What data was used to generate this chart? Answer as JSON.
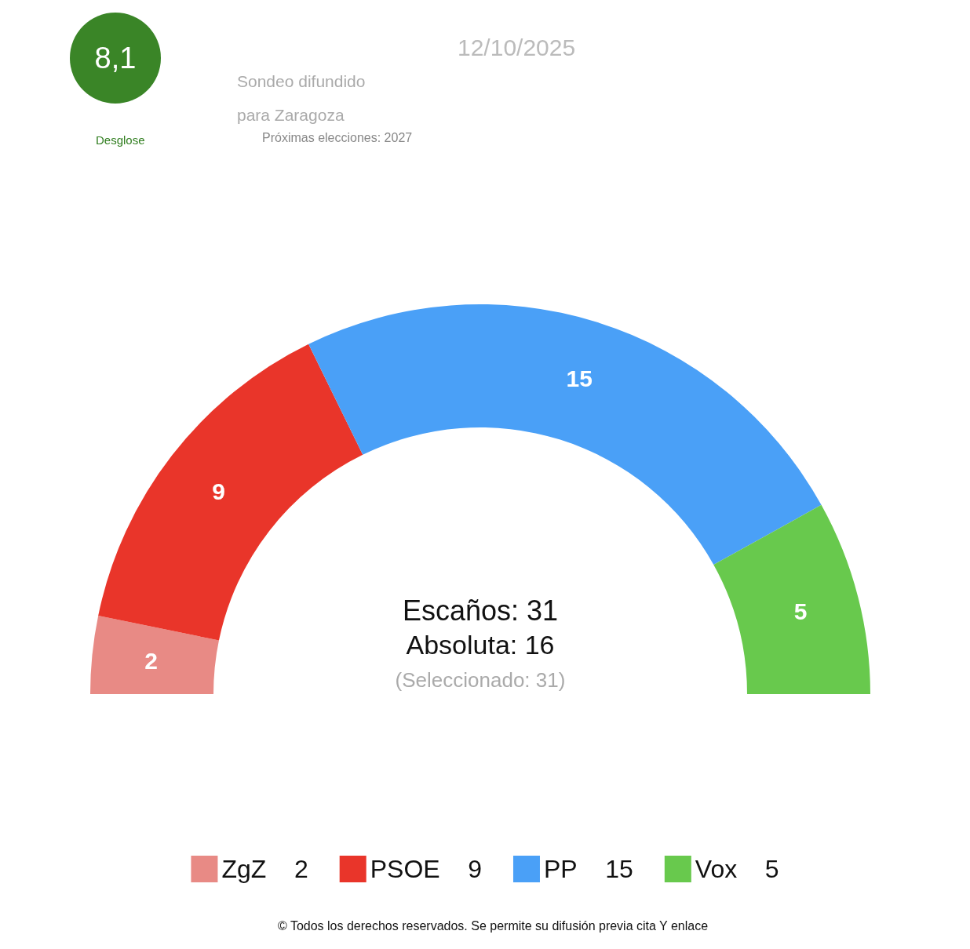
{
  "chart_data": {
    "type": "donut",
    "categories": [
      "ZgZ  2",
      "PSOE  9",
      "PP  15",
      "Vox  5"
    ],
    "values": [
      2,
      9,
      15,
      5
    ],
    "colors": [
      "#e88a85",
      "#e9352a",
      "#4aa0f7",
      "#68c94d"
    ],
    "data_labels": true,
    "legend": "bottom",
    "title": "12/10/2025",
    "annotations": [
      "Sondeo difundido",
      "para Zaragoza",
      "Próximas elecciones: 2027",
      "8,1",
      "Desglose",
      "Escaños: 31",
      "Absoluta: 16",
      "(Seleccionado: 31)",
      "© Todos los derechos reservados. Se permite su difusión previa cita Y enlace"
    ]
  }
}
